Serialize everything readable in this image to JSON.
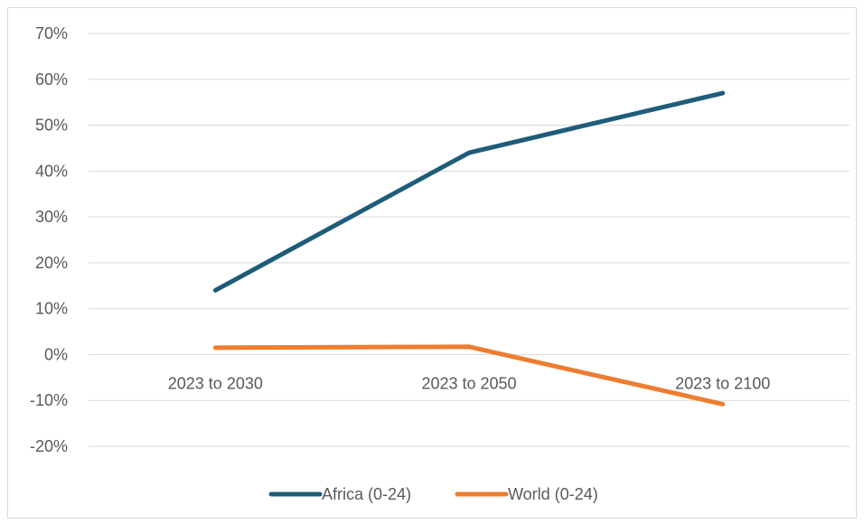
{
  "chart_data": {
    "type": "line",
    "categories": [
      "2023 to 2030",
      "2023 to 2050",
      "2023 to 2100"
    ],
    "series": [
      {
        "name": "Africa (0-24)",
        "values": [
          0.14,
          0.44,
          0.57
        ],
        "color": "#1f5c7a"
      },
      {
        "name": "World (0-24)",
        "values": [
          0.015,
          0.017,
          -0.108
        ],
        "color": "#ed7d31"
      }
    ],
    "y_tick_values": [
      0.7,
      0.6,
      0.5,
      0.4,
      0.3,
      0.2,
      0.1,
      0,
      -0.1,
      -0.2
    ],
    "y_tick_labels": [
      "70%",
      "60%",
      "50%",
      "40%",
      "30%",
      "20%",
      "10%",
      "0%",
      "-10%",
      "-20%"
    ],
    "ylim": [
      -0.2,
      0.7
    ],
    "grid": true,
    "legend_position": "bottom",
    "gridline_color": "#d9d9d9",
    "title": "",
    "xlabel": "",
    "ylabel": ""
  }
}
